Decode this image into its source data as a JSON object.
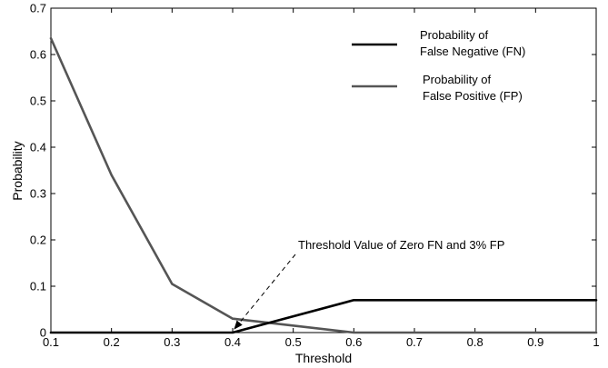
{
  "chart_data": {
    "type": "line",
    "xlabel": "Threshold",
    "ylabel": "Probability",
    "xlim": [
      0.1,
      1
    ],
    "ylim": [
      0,
      0.7
    ],
    "xticks": [
      "0.1",
      "0.2",
      "0.3",
      "0.4",
      "0.5",
      "0.6",
      "0.7",
      "0.8",
      "0.9",
      "1"
    ],
    "yticks": [
      "0",
      "0.1",
      "0.2",
      "0.3",
      "0.4",
      "0.5",
      "0.6",
      "0.7"
    ],
    "grid": false,
    "legend_position": "top-right",
    "series": [
      {
        "name_lines": [
          "Probability of",
          "False Negative (FN)"
        ],
        "color": "#000000",
        "x": [
          0.1,
          0.2,
          0.3,
          0.4,
          0.6,
          0.8,
          1.0
        ],
        "y": [
          0,
          0,
          0,
          0,
          0.07,
          0.07,
          0.07
        ]
      },
      {
        "name_lines": [
          "Probability of",
          "False Positive (FP)"
        ],
        "color": "#555555",
        "x": [
          0.1,
          0.2,
          0.3,
          0.4,
          0.6,
          0.8,
          1.0
        ],
        "y": [
          0.635,
          0.34,
          0.105,
          0.03,
          0,
          0,
          0
        ]
      }
    ],
    "annotation": {
      "text": "Threshold Value of Zero FN and 3% FP",
      "target": [
        0.4,
        0.0
      ]
    }
  }
}
